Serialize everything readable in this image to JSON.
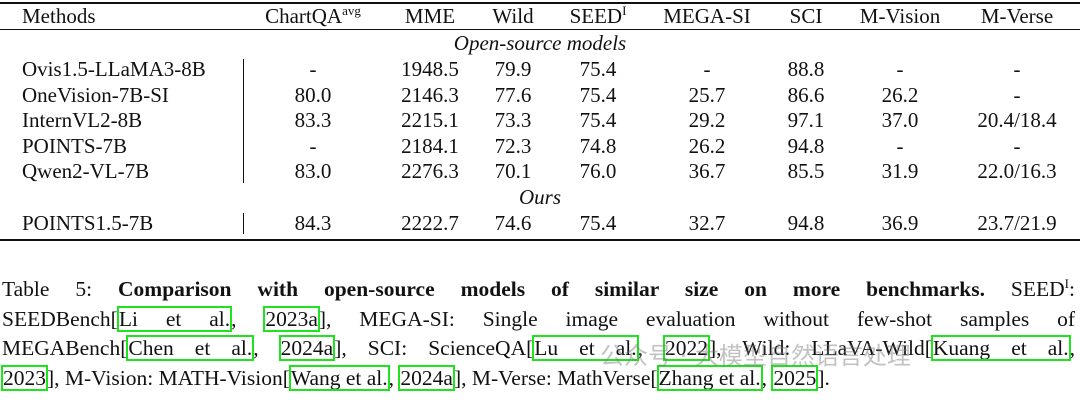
{
  "table": {
    "columns": [
      {
        "text": "Methods"
      },
      {
        "text": "ChartQA",
        "sup": "avg"
      },
      {
        "text": "MME"
      },
      {
        "text": "Wild"
      },
      {
        "text": "SEED",
        "sup": "I"
      },
      {
        "text": "MEGA-SI"
      },
      {
        "text": "SCI"
      },
      {
        "text": "M-Vision"
      },
      {
        "text": "M-Verse"
      }
    ],
    "sections": [
      {
        "title": "Open-source models",
        "rows": [
          [
            "Ovis1.5-LLaMA3-8B",
            "-",
            "1948.5",
            "79.9",
            "75.4",
            "-",
            "88.8",
            "-",
            "-"
          ],
          [
            "OneVision-7B-SI",
            "80.0",
            "2146.3",
            "77.6",
            "75.4",
            "25.7",
            "86.6",
            "26.2",
            "-"
          ],
          [
            "InternVL2-8B",
            "83.3",
            "2215.1",
            "73.3",
            "75.4",
            "29.2",
            "97.1",
            "37.0",
            "20.4/18.4"
          ],
          [
            "POINTS-7B",
            "-",
            "2184.1",
            "72.3",
            "74.8",
            "26.2",
            "94.8",
            "-",
            "-"
          ],
          [
            "Qwen2-VL-7B",
            "83.0",
            "2276.3",
            "70.1",
            "76.0",
            "36.7",
            "85.5",
            "31.9",
            "22.0/16.3"
          ]
        ]
      },
      {
        "title": "Ours",
        "rows": [
          [
            "POINTS1.5-7B",
            "84.3",
            "2222.7",
            "74.6",
            "75.4",
            "32.7",
            "94.8",
            "36.9",
            "23.7/21.9"
          ]
        ]
      }
    ]
  },
  "caption": {
    "lines": [
      [
        {
          "text": "Table 5: "
        },
        {
          "bold": "Comparison with open-source models of similar size on more benchmarks."
        },
        {
          "text": " SEED"
        },
        {
          "sup": "I"
        },
        {
          "text": ":"
        }
      ],
      [
        {
          "text": "SEEDBench["
        },
        {
          "cite": "Li et al."
        },
        {
          "text": ", "
        },
        {
          "cite": "2023a"
        },
        {
          "text": "], MEGA-SI: Single image evaluation without few-shot samples of"
        }
      ],
      [
        {
          "text": "MEGABench["
        },
        {
          "cite": "Chen et al."
        },
        {
          "text": ", "
        },
        {
          "cite": "2024a"
        },
        {
          "text": "], SCI: ScienceQA["
        },
        {
          "cite": "Lu et al."
        },
        {
          "text": ", "
        },
        {
          "cite": "2022"
        },
        {
          "text": "], Wild: LLaVA-Wild["
        },
        {
          "cite": "Kuang et al."
        },
        {
          "text": ","
        }
      ],
      [
        {
          "cite": "2023"
        },
        {
          "text": "], M-Vision: MATH-Vision["
        },
        {
          "cite": "Wang et al."
        },
        {
          "text": ", "
        },
        {
          "cite": "2024a"
        },
        {
          "text": "], M-Verse: MathVerse["
        },
        {
          "cite": "Zhang et al."
        },
        {
          "text": ", "
        },
        {
          "cite": "2025"
        },
        {
          "text": "]."
        }
      ]
    ]
  },
  "watermark": "公众号 · 大模型自然语言处理"
}
